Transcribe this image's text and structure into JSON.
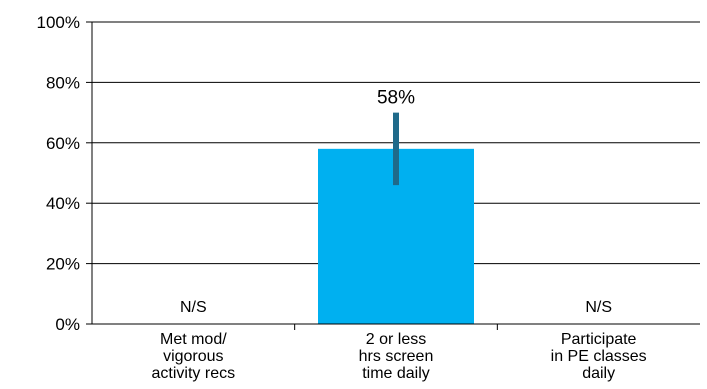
{
  "chart_data": {
    "type": "bar",
    "categories": [
      [
        "Met mod/",
        "vigorous",
        "activity recs"
      ],
      [
        "2 or less",
        "hrs screen",
        "time daily"
      ],
      [
        "Participate",
        "in PE classes",
        "daily"
      ]
    ],
    "values": [
      null,
      58,
      null
    ],
    "error_bars": [
      null,
      [
        46,
        70
      ],
      null
    ],
    "data_labels": [
      "N/S",
      "58%",
      "N/S"
    ],
    "ylim": [
      0,
      100
    ],
    "yticks": [
      0,
      20,
      40,
      60,
      80,
      100
    ],
    "ytick_labels": [
      "0%",
      "20%",
      "40%",
      "60%",
      "80%",
      "100%"
    ],
    "grid": true,
    "legend": "none",
    "colors": {
      "bar": "#00b0f0",
      "error_bar": "#1f6a8a",
      "grid": "#000000",
      "axis": "#000000"
    }
  }
}
